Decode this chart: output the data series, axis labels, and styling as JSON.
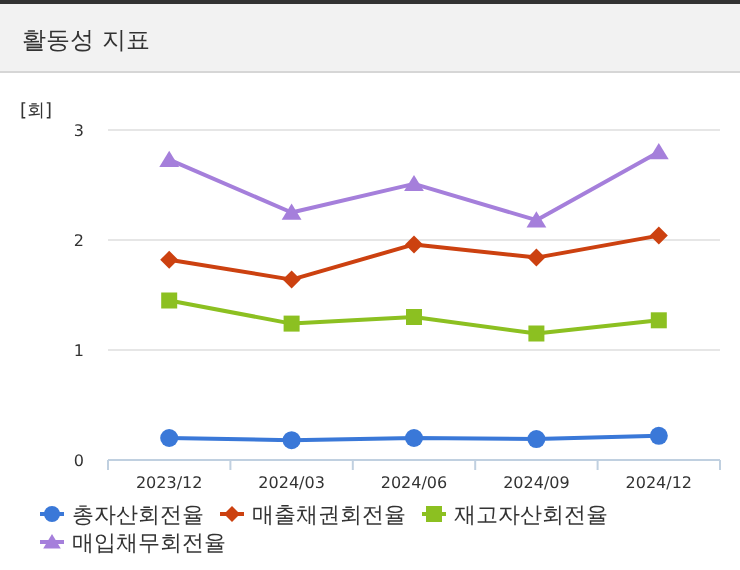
{
  "chart_data": {
    "type": "line",
    "title": "활동성 지표",
    "ylabel": "[회]",
    "categories": [
      "2023/12",
      "2024/03",
      "2024/06",
      "2024/09",
      "2024/12"
    ],
    "series": [
      {
        "name": "총자산회전율",
        "color": "#3a78d8",
        "marker": "circle",
        "values": [
          0.2,
          0.18,
          0.2,
          0.19,
          0.22
        ]
      },
      {
        "name": "매출채권회전율",
        "color": "#cc4110",
        "marker": "diamond",
        "values": [
          1.82,
          1.64,
          1.96,
          1.84,
          2.04
        ]
      },
      {
        "name": "재고자산회전율",
        "color": "#8cc021",
        "marker": "square",
        "values": [
          1.45,
          1.24,
          1.3,
          1.15,
          1.27
        ]
      },
      {
        "name": "매입채무회전율",
        "color": "#a57fdb",
        "marker": "triangle",
        "values": [
          2.73,
          2.25,
          2.51,
          2.18,
          2.8
        ]
      }
    ],
    "ylim": [
      0,
      3
    ],
    "yticks": [
      0,
      1,
      2,
      3
    ],
    "grid": "y",
    "legend": "bottom"
  }
}
